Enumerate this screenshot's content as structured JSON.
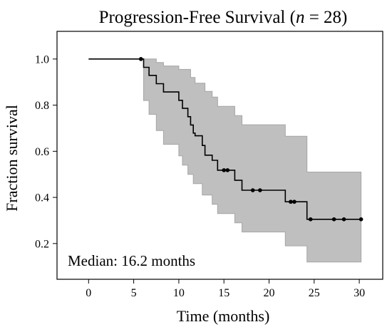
{
  "chart_data": {
    "type": "line",
    "title_main": "Progression-Free Survival (",
    "title_n": "n",
    "title_rest": " = 28)",
    "xlabel": "Time (months)",
    "ylabel": "Fraction survival",
    "xlim": [
      -3.5,
      32.6
    ],
    "ylim": [
      0.045,
      1.12
    ],
    "xticks": [
      "0",
      "5",
      "10",
      "15",
      "20",
      "25",
      "30"
    ],
    "yticks": [
      "0.2",
      "0.4",
      "0.6",
      "0.8",
      "1.0"
    ],
    "annotation": "Median: 16.2 months",
    "grid": false,
    "survival_curve": {
      "line_color": "#000000",
      "steps": [
        [
          0,
          1.0
        ],
        [
          6.1,
          0.964
        ],
        [
          6.7,
          0.929
        ],
        [
          7.5,
          0.893
        ],
        [
          8.3,
          0.857
        ],
        [
          10.0,
          0.821
        ],
        [
          10.4,
          0.786
        ],
        [
          11.0,
          0.75
        ],
        [
          11.3,
          0.714
        ],
        [
          11.6,
          0.679
        ],
        [
          11.8,
          0.667
        ],
        [
          12.6,
          0.625
        ],
        [
          12.9,
          0.583
        ],
        [
          13.7,
          0.561
        ],
        [
          14.3,
          0.518
        ],
        [
          16.2,
          0.474
        ],
        [
          17.0,
          0.431
        ],
        [
          21.8,
          0.381
        ],
        [
          24.2,
          0.305
        ],
        [
          30.2,
          0.305
        ]
      ]
    },
    "censored_times": [
      5.8,
      15.0,
      15.4,
      18.2,
      19.0,
      22.4,
      22.8,
      24.6,
      27.2,
      28.3,
      30.2
    ],
    "confidence_band": {
      "fill_color": "#bfbfbf",
      "edge_color": "#a6a6a6",
      "upper": [
        [
          0,
          1.0
        ],
        [
          6.1,
          1.0
        ],
        [
          7.5,
          0.985
        ],
        [
          8.3,
          0.97
        ],
        [
          10.0,
          0.955
        ],
        [
          11.3,
          0.92
        ],
        [
          11.8,
          0.895
        ],
        [
          12.9,
          0.86
        ],
        [
          13.7,
          0.835
        ],
        [
          14.3,
          0.795
        ],
        [
          16.2,
          0.755
        ],
        [
          17.0,
          0.715
        ],
        [
          21.8,
          0.665
        ],
        [
          24.2,
          0.51
        ],
        [
          30.2,
          0.51
        ]
      ],
      "lower": [
        [
          0,
          1.0
        ],
        [
          6.1,
          0.82
        ],
        [
          6.7,
          0.76
        ],
        [
          7.5,
          0.69
        ],
        [
          8.3,
          0.63
        ],
        [
          10.0,
          0.58
        ],
        [
          10.4,
          0.54
        ],
        [
          11.0,
          0.5
        ],
        [
          11.6,
          0.46
        ],
        [
          12.6,
          0.41
        ],
        [
          13.7,
          0.37
        ],
        [
          14.3,
          0.33
        ],
        [
          16.2,
          0.29
        ],
        [
          17.0,
          0.25
        ],
        [
          21.8,
          0.19
        ],
        [
          24.2,
          0.12
        ],
        [
          30.2,
          0.12
        ]
      ]
    }
  }
}
